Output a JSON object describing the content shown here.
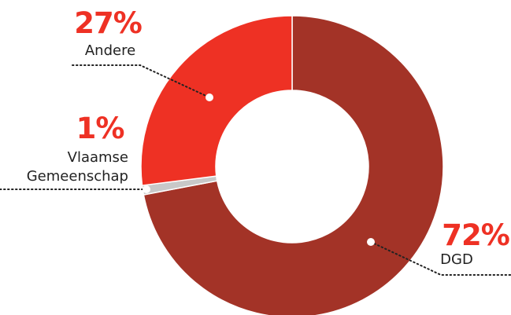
{
  "chart_data": {
    "type": "pie",
    "style": "donut",
    "categories": [
      "DGD",
      "Vlaamse Gemeenschap",
      "Andere"
    ],
    "values": [
      72,
      1,
      27
    ],
    "labels": [
      {
        "category": "DGD",
        "percent_text": "72%",
        "lines": [
          "DGD"
        ]
      },
      {
        "category": "Vlaamse Gemeenschap",
        "percent_text": "1%",
        "lines": [
          "Vlaamse",
          "Gemeenschap"
        ]
      },
      {
        "category": "Andere",
        "percent_text": "27%",
        "lines": [
          "Andere"
        ]
      }
    ],
    "colors": {
      "DGD": "#a33327",
      "Vlaamse Gemeenschap": "#c8c8c8",
      "Andere": "#ee3124",
      "percent_text": "#ee3124",
      "label_text": "#222222",
      "leader": "#222222"
    },
    "legend": "none",
    "title": ""
  }
}
